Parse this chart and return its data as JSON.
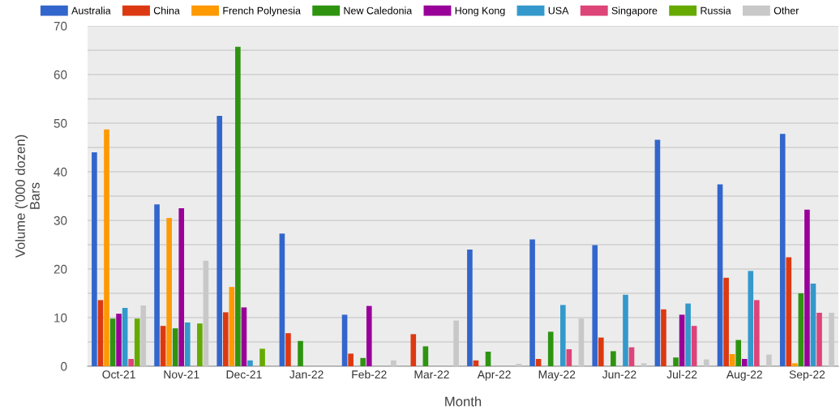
{
  "chart_data": {
    "type": "bar",
    "xlabel": "Month",
    "ylabel": "Volume ('000 dozen)\nBars",
    "categories": [
      "Oct-21",
      "Nov-21",
      "Dec-21",
      "Jan-22",
      "Feb-22",
      "Mar-22",
      "Apr-22",
      "May-22",
      "Jun-22",
      "Jul-22",
      "Aug-22",
      "Sep-22"
    ],
    "series": [
      {
        "name": "Australia",
        "color": "#3366cc",
        "values": [
          44,
          33.3,
          51.5,
          27.3,
          10.6,
          null,
          24,
          26.1,
          24.9,
          46.6,
          37.4,
          47.8
        ]
      },
      {
        "name": "China",
        "color": "#dc3912",
        "values": [
          13.6,
          8.3,
          11.1,
          6.8,
          2.6,
          6.6,
          1.2,
          1.5,
          5.9,
          11.7,
          18.2,
          22.4
        ]
      },
      {
        "name": "French Polynesia",
        "color": "#ff9900",
        "values": [
          48.7,
          30.5,
          16.3,
          null,
          null,
          null,
          null,
          null,
          null,
          null,
          2.5,
          0.6
        ]
      },
      {
        "name": "New Caledonia",
        "color": "#2e9410",
        "values": [
          9.8,
          7.8,
          65.7,
          5.2,
          1.7,
          4.1,
          3.0,
          7.1,
          3.1,
          1.8,
          5.4,
          15.0
        ]
      },
      {
        "name": "Hong Kong",
        "color": "#990099",
        "values": [
          10.8,
          32.5,
          12.1,
          null,
          12.4,
          null,
          null,
          null,
          null,
          10.6,
          1.5,
          32.2
        ]
      },
      {
        "name": "USA",
        "color": "#3399cc",
        "values": [
          12,
          9.0,
          1.2,
          null,
          null,
          null,
          null,
          12.6,
          14.7,
          12.9,
          19.6,
          17.0
        ]
      },
      {
        "name": "Singapore",
        "color": "#dd4477",
        "values": [
          1.5,
          null,
          null,
          null,
          null,
          null,
          null,
          3.5,
          3.9,
          8.3,
          13.6,
          11.0
        ]
      },
      {
        "name": "Russia",
        "color": "#66aa00",
        "values": [
          9.8,
          8.8,
          3.6,
          null,
          null,
          null,
          null,
          null,
          null,
          null,
          null,
          null
        ]
      },
      {
        "name": "Other",
        "color": "#c8c8c8",
        "values": [
          12.5,
          21.7,
          null,
          null,
          1.2,
          9.4,
          0.5,
          9.8,
          0.6,
          1.4,
          2.4,
          11.0
        ]
      }
    ],
    "ylim": [
      0,
      70
    ],
    "yticks": [
      0,
      {
        "value": 5,
        "label": null
      },
      10,
      {
        "value": 15,
        "label": null
      },
      20,
      {
        "value": 25,
        "label": null
      },
      30,
      {
        "value": 35,
        "label": null
      },
      40,
      {
        "value": 45,
        "label": null
      },
      50,
      {
        "value": 55,
        "label": null
      },
      60,
      {
        "value": 65,
        "label": null
      },
      70
    ],
    "grid": "y",
    "legend": "top"
  }
}
